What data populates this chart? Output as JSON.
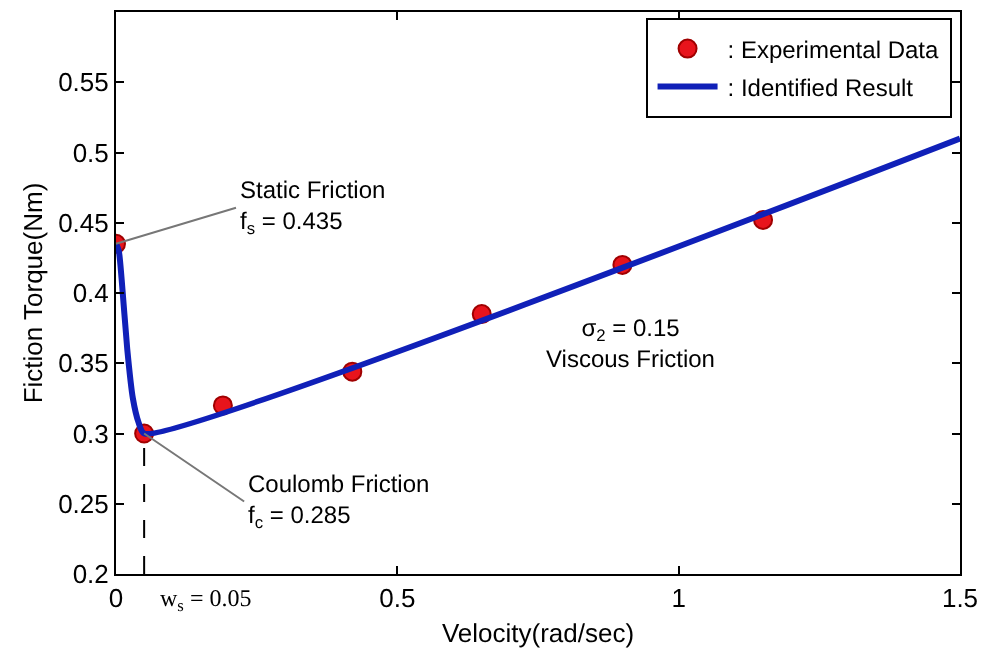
{
  "chart_data": {
    "type": "scatter",
    "xlabel": "Velocity(rad/sec)",
    "ylabel": "Fiction Torque(Nm)",
    "xlim": [
      0,
      1.5
    ],
    "xticks": [
      0,
      0.5,
      1,
      1.5
    ],
    "ylim": [
      0.2,
      0.6
    ],
    "yticks": [
      0.2,
      0.25,
      0.3,
      0.35,
      0.4,
      0.45,
      0.5,
      0.55
    ],
    "series": [
      {
        "name": ": Experimental Data",
        "color": "#e8141c",
        "marker": "circle",
        "x": [
          0,
          0.05,
          0.19,
          0.42,
          0.65,
          0.9,
          1.15
        ],
        "values": [
          0.435,
          0.3,
          0.32,
          0.344,
          0.385,
          0.42,
          0.452
        ]
      },
      {
        "name": ": Identified Result",
        "type": "line",
        "color": "#1020b8",
        "marker": "none",
        "line_style": "solid",
        "x": [
          0,
          0.005,
          0.01,
          0.02,
          0.03,
          0.04,
          0.05,
          1.5
        ],
        "values": [
          0.435,
          0.43,
          0.41,
          0.36,
          0.325,
          0.308,
          0.3,
          0.51
        ]
      }
    ],
    "annotations": [
      {
        "text": "Static Friction\nf$_{s}$ = 0.435",
        "x": 0,
        "y": 0.435
      },
      {
        "text": "Coulomb Friction\nf$_{c}$ = 0.285",
        "x": 0.05,
        "y": 0.3
      },
      "σ$_{2}$ = 0.15\nViscous Friction"
    ],
    "ref_lines": [
      {
        "axis": "x",
        "value": 0.05,
        "label": "w$_{s}$ = 0.05",
        "line_style": "dashed",
        "color": "#000000"
      }
    ],
    "legend": "top right"
  }
}
